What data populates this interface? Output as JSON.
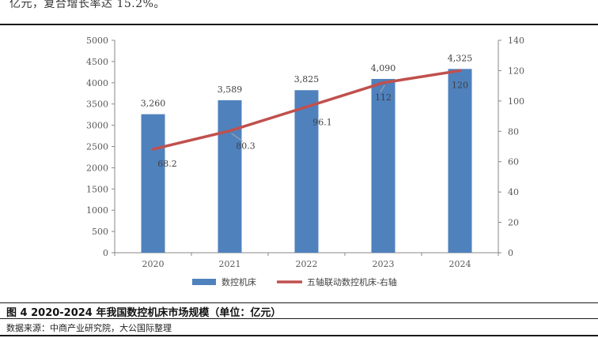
{
  "header": {
    "text": "亿元，复合增长率达 15.2%。"
  },
  "figure": {
    "caption": "图 4   2020-2024 年我国数控机床市场规模（单位：亿元）",
    "source": "数据来源：中商产业研究院，大公国际整理"
  },
  "chart_data": {
    "type": "bar",
    "categories": [
      "2020",
      "2021",
      "2022",
      "2023",
      "2024"
    ],
    "series": [
      {
        "name": "数控机床",
        "type": "bar",
        "axis": "left",
        "values": [
          3260,
          3589,
          3825,
          4090,
          4325
        ],
        "labels": [
          "3,260",
          "3,589",
          "3,825",
          "4,090",
          "4,325"
        ],
        "color": "#4F81BD"
      },
      {
        "name": "五轴联动数控机床-右轴",
        "type": "line",
        "axis": "right",
        "values": [
          68.2,
          80.3,
          96.1,
          112,
          120
        ],
        "labels": [
          "68.2",
          "80.3",
          "96.1",
          "112",
          "120"
        ],
        "color": "#C0504D"
      }
    ],
    "y_left": {
      "min": 0,
      "max": 5000,
      "step": 500,
      "ticks": [
        "0",
        "500",
        "1000",
        "1500",
        "2000",
        "2500",
        "3000",
        "3500",
        "4000",
        "4500",
        "5000"
      ]
    },
    "y_right": {
      "min": 0,
      "max": 140,
      "step": 20,
      "ticks": [
        "0",
        "20",
        "40",
        "60",
        "80",
        "100",
        "120",
        "140"
      ]
    },
    "grid": false,
    "legend": "bottom"
  }
}
